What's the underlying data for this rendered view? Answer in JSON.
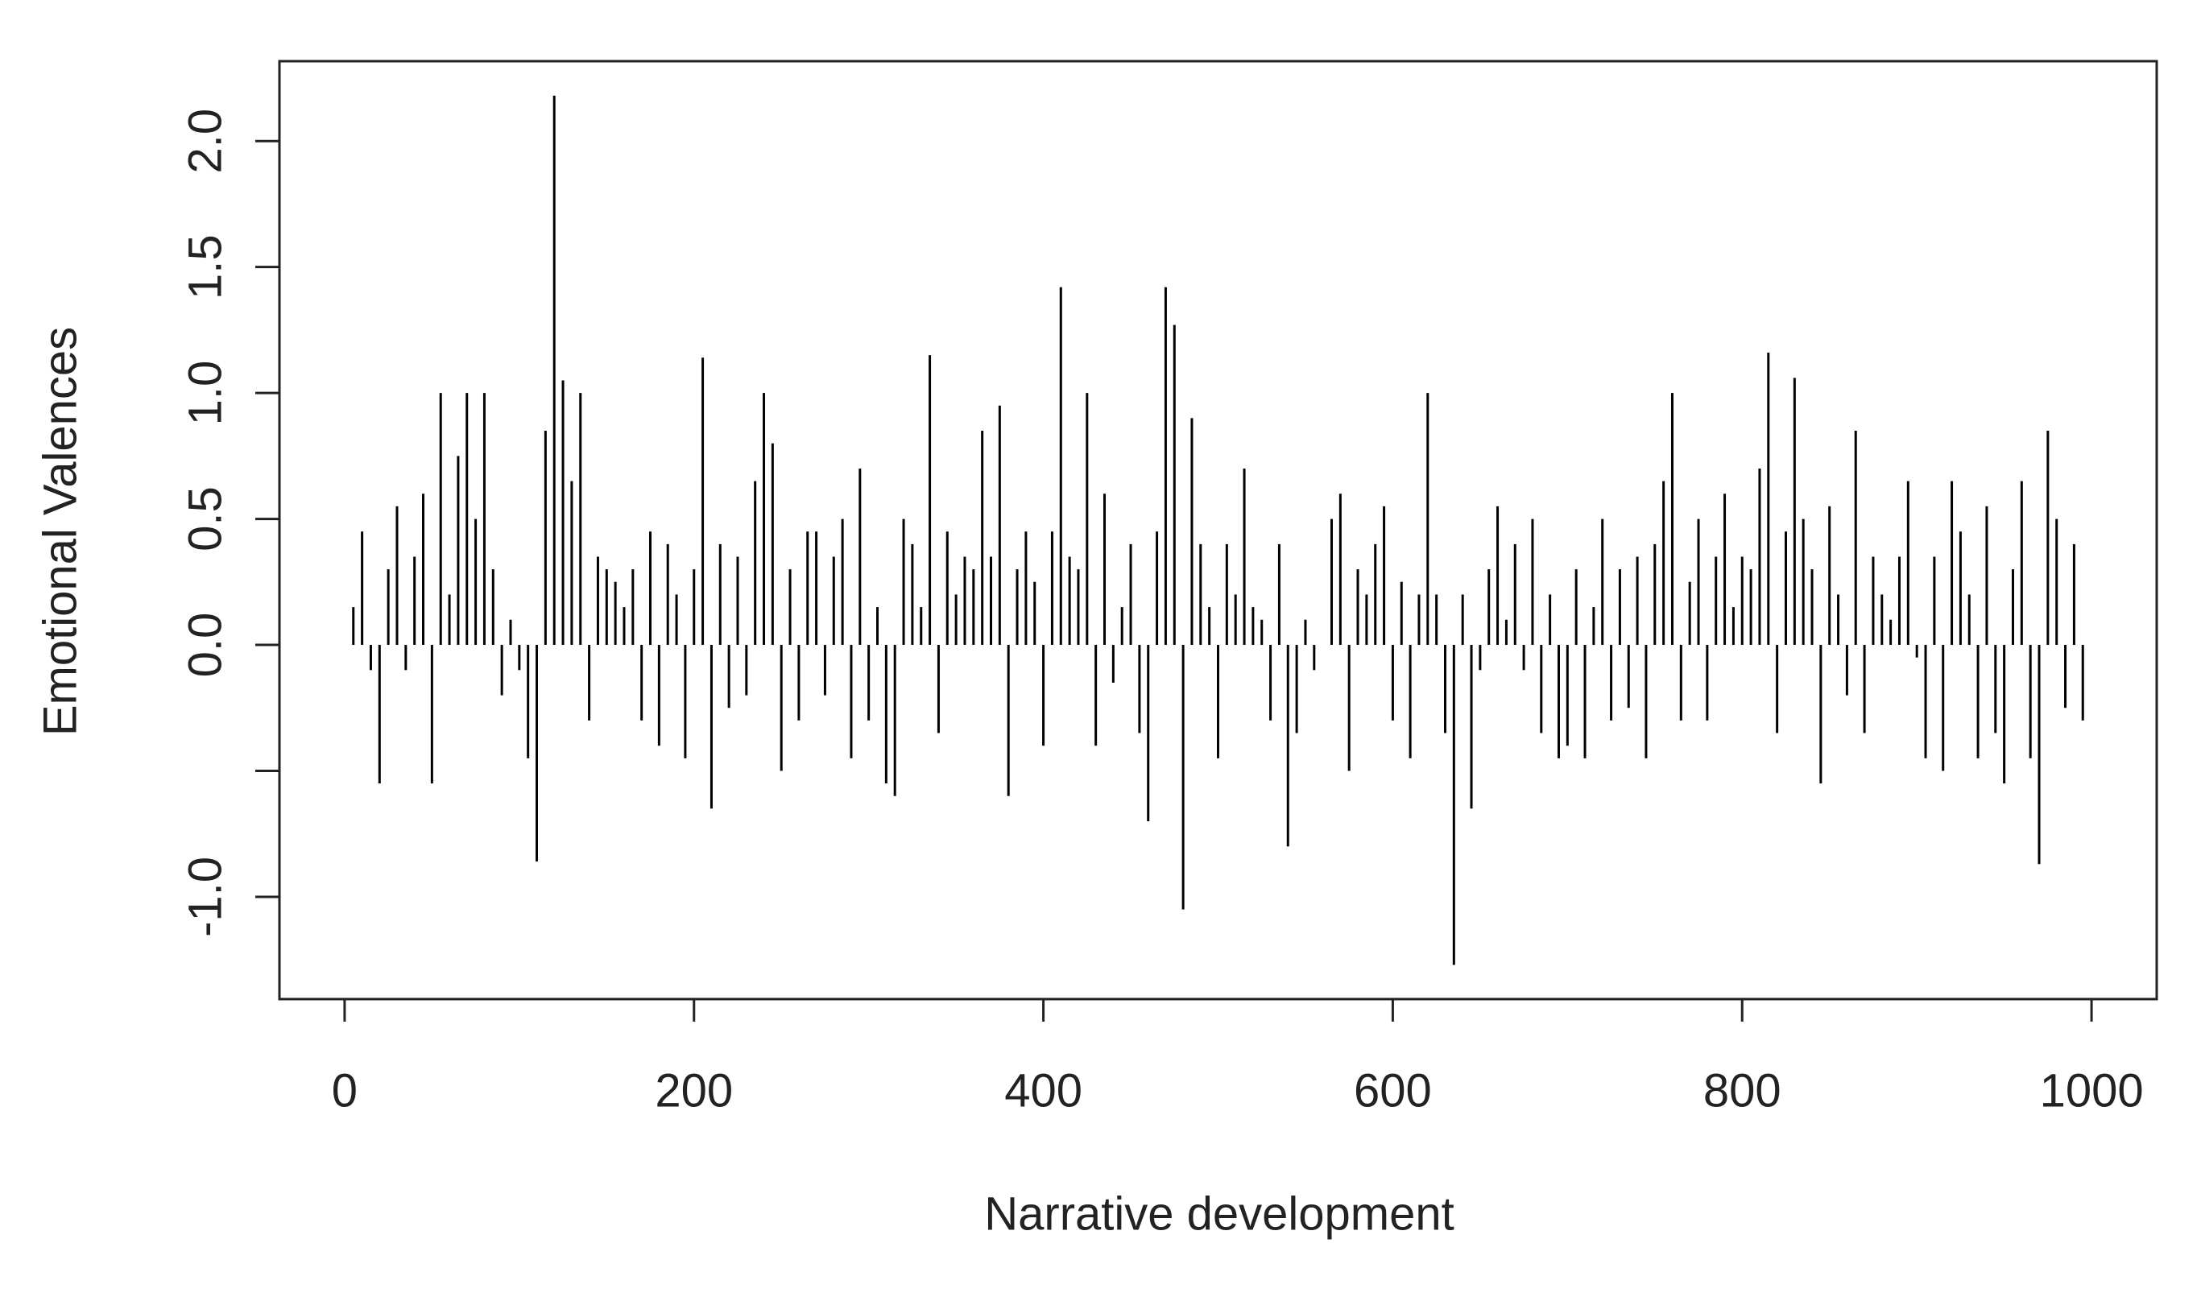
{
  "chart_data": {
    "type": "spike",
    "x_label": "Narrative development",
    "y_label": "Emotional Valences",
    "color": "#000000",
    "xlim": [
      -37.3,
      1037.3
    ],
    "xticks": [
      0,
      200,
      400,
      600,
      800,
      1000
    ],
    "ylim": [
      -1.406,
      2.317
    ],
    "yticks": [
      {
        "value": -1,
        "label": "-1.0"
      },
      {
        "value": -0.5,
        "label": null
      },
      {
        "value": 0,
        "label": "0.0"
      },
      {
        "value": 0.5,
        "label": "0.5"
      },
      {
        "value": 1,
        "label": "1.0"
      },
      {
        "value": 1.5,
        "label": "1.5"
      },
      {
        "value": 2,
        "label": "2.0"
      }
    ],
    "x": [
      5,
      10,
      15,
      20,
      25,
      30,
      35,
      40,
      45,
      50,
      55,
      60,
      65,
      70,
      75,
      80,
      85,
      90,
      95,
      100,
      105,
      110,
      115,
      120,
      125,
      130,
      135,
      140,
      145,
      150,
      155,
      160,
      165,
      170,
      175,
      180,
      185,
      190,
      195,
      200,
      205,
      210,
      215,
      220,
      225,
      230,
      235,
      240,
      245,
      250,
      255,
      260,
      265,
      270,
      275,
      280,
      285,
      290,
      295,
      300,
      305,
      310,
      315,
      320,
      325,
      330,
      335,
      340,
      345,
      350,
      355,
      360,
      365,
      370,
      375,
      380,
      385,
      390,
      395,
      400,
      405,
      410,
      415,
      420,
      425,
      430,
      435,
      440,
      445,
      450,
      455,
      460,
      465,
      470,
      475,
      480,
      485,
      490,
      495,
      500,
      505,
      510,
      515,
      520,
      525,
      530,
      535,
      540,
      545,
      550,
      555,
      560,
      565,
      570,
      575,
      580,
      585,
      590,
      595,
      600,
      605,
      610,
      615,
      620,
      625,
      630,
      635,
      640,
      645,
      650,
      655,
      660,
      665,
      670,
      675,
      680,
      685,
      690,
      695,
      700,
      705,
      710,
      715,
      720,
      725,
      730,
      735,
      740,
      745,
      750,
      755,
      760,
      765,
      770,
      775,
      780,
      785,
      790,
      795,
      800,
      805,
      810,
      815,
      820,
      825,
      830,
      835,
      840,
      845,
      850,
      855,
      860,
      865,
      870,
      875,
      880,
      885,
      890,
      895,
      900,
      905,
      910,
      915,
      920,
      925,
      930,
      935,
      940,
      945,
      950,
      955,
      960,
      965,
      970,
      975,
      980,
      985,
      990,
      995
    ],
    "values": [
      0.15,
      0.45,
      -0.1,
      -0.55,
      0.3,
      0.55,
      -0.1,
      0.35,
      0.6,
      -0.55,
      1.0,
      0.2,
      0.75,
      1.0,
      0.5,
      1.0,
      0.3,
      -0.2,
      0.1,
      -0.1,
      -0.45,
      -0.86,
      0.85,
      2.18,
      1.05,
      0.65,
      1.0,
      -0.3,
      0.35,
      0.3,
      0.25,
      0.15,
      0.3,
      -0.3,
      0.45,
      -0.4,
      0.4,
      0.2,
      -0.45,
      0.3,
      1.14,
      -0.65,
      0.4,
      -0.25,
      0.35,
      -0.2,
      0.65,
      1.0,
      0.8,
      -0.5,
      0.3,
      -0.3,
      0.45,
      0.45,
      -0.2,
      0.35,
      0.5,
      -0.45,
      0.7,
      -0.3,
      0.15,
      -0.55,
      -0.6,
      0.5,
      0.4,
      0.15,
      1.15,
      -0.35,
      0.45,
      0.2,
      0.35,
      0.3,
      0.85,
      0.35,
      0.95,
      -0.6,
      0.3,
      0.45,
      0.25,
      -0.4,
      0.45,
      1.42,
      0.35,
      0.3,
      1.0,
      -0.4,
      0.6,
      -0.15,
      0.15,
      0.4,
      -0.35,
      -0.7,
      0.45,
      1.42,
      1.27,
      -1.05,
      0.9,
      0.4,
      0.15,
      -0.45,
      0.4,
      0.2,
      0.7,
      0.15,
      0.1,
      -0.3,
      0.4,
      -0.8,
      -0.35,
      0.1,
      -0.1,
      0.0,
      0.5,
      0.6,
      -0.5,
      0.3,
      0.2,
      0.4,
      0.55,
      -0.3,
      0.25,
      -0.45,
      0.2,
      1.0,
      0.2,
      -0.35,
      -1.27,
      0.2,
      -0.65,
      -0.1,
      0.3,
      0.55,
      0.1,
      0.4,
      -0.1,
      0.5,
      -0.35,
      0.2,
      -0.45,
      -0.4,
      0.3,
      -0.45,
      0.15,
      0.5,
      -0.3,
      0.3,
      -0.25,
      0.35,
      -0.45,
      0.4,
      0.65,
      1.0,
      -0.3,
      0.25,
      0.5,
      -0.3,
      0.35,
      0.6,
      0.15,
      0.35,
      0.3,
      0.7,
      1.16,
      -0.35,
      0.45,
      1.06,
      0.5,
      0.3,
      -0.55,
      0.55,
      0.2,
      -0.2,
      0.85,
      -0.35,
      0.35,
      0.2,
      0.1,
      0.35,
      0.65,
      -0.05,
      -0.45,
      0.35,
      -0.5,
      0.65,
      0.45,
      0.2,
      -0.45,
      0.55,
      -0.35,
      -0.55,
      0.3,
      0.65,
      -0.45,
      -0.87,
      0.85,
      0.5,
      -0.25,
      0.4,
      -0.3
    ]
  }
}
